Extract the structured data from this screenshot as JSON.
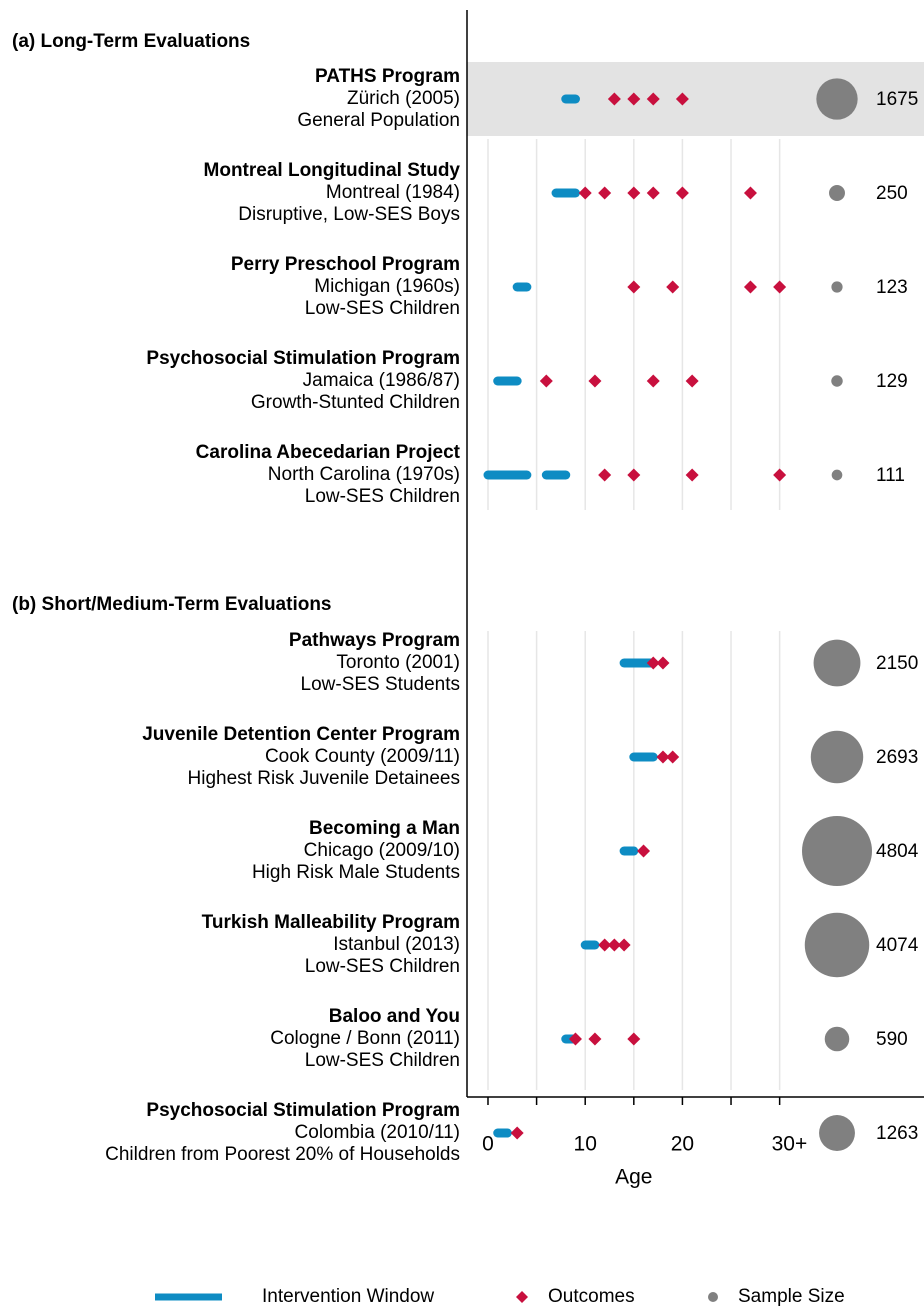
{
  "chart_data": {
    "type": "range-dot",
    "x_label": "Age",
    "xlim": [
      -2.2,
      33
    ],
    "xticks": [
      0,
      10,
      20,
      {
        "value": 30,
        "label": "30+"
      }
    ],
    "xminorticks": [
      5,
      15,
      25
    ],
    "grid": true,
    "colors": {
      "intervention": "#0e8cc3",
      "outcomes": "#c8103e",
      "sample_size": "#808080",
      "highlight": "#e3e3e3"
    },
    "legend": {
      "intervention": "Intervention Window",
      "outcomes": "Outcomes",
      "sample_size": "Sample Size"
    },
    "sections": [
      {
        "title": "(a) Long-Term Evaluations",
        "programs": [
          {
            "name": "PATHS Program",
            "location": "Zürich (2005)",
            "population": "General Population",
            "highlight": true,
            "intervention": [
              [
                8,
                9
              ]
            ],
            "outcomes": [
              13,
              15,
              17,
              20
            ],
            "sample_size": 1675
          },
          {
            "name": "Montreal Longitudinal Study",
            "location": "Montreal (1984)",
            "population": "Disruptive, Low-SES Boys",
            "intervention": [
              [
                7,
                9
              ]
            ],
            "outcomes": [
              10,
              12,
              15,
              17,
              20,
              27
            ],
            "sample_size": 250
          },
          {
            "name": "Perry Preschool Program",
            "location": "Michigan (1960s)",
            "population": "Low-SES Children",
            "intervention": [
              [
                3,
                4
              ]
            ],
            "outcomes": [
              15,
              19,
              27,
              30
            ],
            "sample_size": 123
          },
          {
            "name": "Psychosocial Stimulation Program",
            "location": "Jamaica (1986/87)",
            "population": "Growth-Stunted Children",
            "intervention": [
              [
                1,
                3
              ]
            ],
            "outcomes": [
              6,
              11,
              17,
              21
            ],
            "sample_size": 129
          },
          {
            "name": "Carolina Abecedarian Project",
            "location": "North Carolina (1970s)",
            "population": "Low-SES Children",
            "intervention": [
              [
                0,
                4
              ],
              [
                6,
                8
              ]
            ],
            "outcomes": [
              12,
              15,
              21,
              30
            ],
            "sample_size": 111
          }
        ]
      },
      {
        "title": "(b) Short/Medium-Term Evaluations",
        "programs": [
          {
            "name": "Pathways Program",
            "location": "Toronto (2001)",
            "population": "Low-SES Students",
            "intervention": [
              [
                14,
                17
              ]
            ],
            "outcomes": [
              17,
              18
            ],
            "sample_size": 2150
          },
          {
            "name": "Juvenile Detention Center Program",
            "location": "Cook County (2009/11)",
            "population": "Highest Risk Juvenile Detainees",
            "intervention": [
              [
                15,
                17
              ]
            ],
            "outcomes": [
              18,
              19
            ],
            "sample_size": 2693
          },
          {
            "name": "Becoming a Man",
            "location": "Chicago (2009/10)",
            "population": "High Risk Male Students",
            "intervention": [
              [
                14,
                15
              ]
            ],
            "outcomes": [
              16
            ],
            "sample_size": 4804
          },
          {
            "name": "Turkish Malleability Program",
            "location": "Istanbul (2013)",
            "population": "Low-SES Children",
            "intervention": [
              [
                10,
                11
              ]
            ],
            "outcomes": [
              12,
              13,
              14
            ],
            "sample_size": 4074
          },
          {
            "name": "Baloo and You",
            "location": "Cologne / Bonn (2011)",
            "population": "Low-SES Children",
            "intervention": [
              [
                8,
                9
              ]
            ],
            "outcomes": [
              9,
              11,
              15
            ],
            "sample_size": 590
          },
          {
            "name": "Psychosocial Stimulation Program",
            "location": "Colombia (2010/11)",
            "population": "Children from Poorest 20% of Households",
            "intervention": [
              [
                1,
                2
              ]
            ],
            "outcomes": [
              3
            ],
            "sample_size": 1263
          }
        ]
      }
    ]
  }
}
